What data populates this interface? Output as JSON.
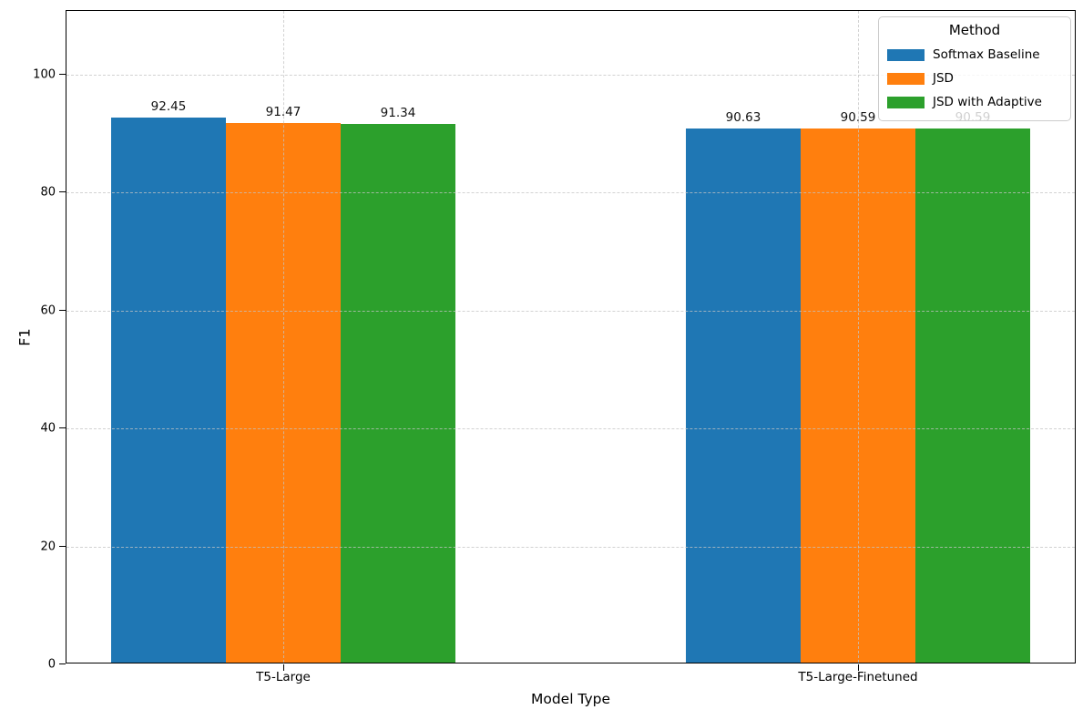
{
  "chart_data": {
    "type": "bar",
    "title": "",
    "xlabel": "Model Type",
    "ylabel": "F1",
    "categories": [
      "T5-Large",
      "T5-Large-Finetuned"
    ],
    "series": [
      {
        "name": "Softmax Baseline",
        "color": "#1f77b4",
        "values": [
          92.45,
          90.63
        ]
      },
      {
        "name": "JSD",
        "color": "#ff7f0e",
        "values": [
          91.47,
          90.59
        ]
      },
      {
        "name": "JSD with Adaptive",
        "color": "#2ca02c",
        "values": [
          91.34,
          90.59
        ]
      }
    ],
    "bar_labels": [
      [
        "92.45",
        "90.63"
      ],
      [
        "91.47",
        "90.59"
      ],
      [
        "91.34",
        "90.59"
      ]
    ],
    "legend": {
      "title": "Method",
      "position": "upper right",
      "entries": [
        "Softmax Baseline",
        "JSD",
        "JSD with Adaptive"
      ]
    },
    "ylim": [
      0,
      110.8
    ],
    "yticks": [
      0,
      20,
      40,
      60,
      80,
      100
    ],
    "grid": true,
    "grid_style": "dashed"
  }
}
